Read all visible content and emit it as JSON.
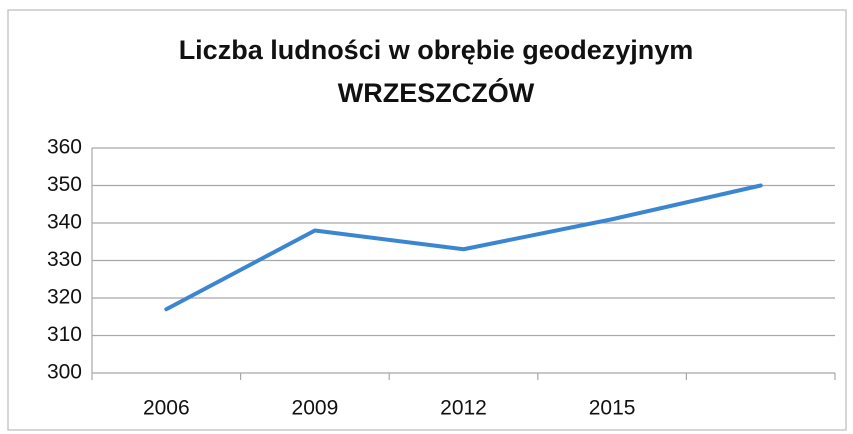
{
  "chart_data": {
    "type": "line",
    "title": [
      "Liczba ludności w obrębie geodezyjnym",
      "WRZESZCZÓW"
    ],
    "categories": [
      "2006",
      "2009",
      "2012",
      "2015",
      null
    ],
    "series": [
      {
        "name": "Liczba ludności",
        "color": "#3b86d1",
        "values": [
          317,
          338,
          333,
          341,
          350
        ]
      }
    ],
    "ylim": [
      300,
      360
    ],
    "yticks": [
      300,
      310,
      320,
      330,
      340,
      350,
      360
    ],
    "grid": true,
    "legend": false
  }
}
